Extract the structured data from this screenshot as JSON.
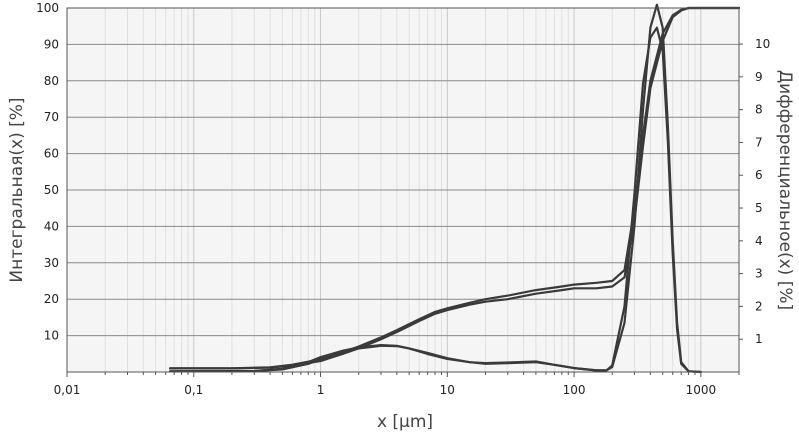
{
  "chart_data": {
    "type": "line",
    "xlabel": "x [µm]",
    "ylabel_left": "Интегральная(x) [%]",
    "ylabel_right": "Дифференциальное(x) [%]",
    "x_scale": "log",
    "xlim": [
      0.01,
      2000
    ],
    "ylim_left": [
      0,
      100
    ],
    "ylim_right": [
      0,
      11.1
    ],
    "grid": true,
    "x_ticks": [
      {
        "value": 0.01,
        "label": "0,01"
      },
      {
        "value": 0.1,
        "label": "0,1"
      },
      {
        "value": 1,
        "label": "1"
      },
      {
        "value": 10,
        "label": "10"
      },
      {
        "value": 100,
        "label": "100"
      },
      {
        "value": 1000,
        "label": "1000"
      }
    ],
    "y_left_ticks": [
      {
        "value": 10,
        "label": "10"
      },
      {
        "value": 20,
        "label": "20"
      },
      {
        "value": 30,
        "label": "30"
      },
      {
        "value": 40,
        "label": "40"
      },
      {
        "value": 50,
        "label": "50"
      },
      {
        "value": 60,
        "label": "60"
      },
      {
        "value": 70,
        "label": "70"
      },
      {
        "value": 80,
        "label": "80"
      },
      {
        "value": 90,
        "label": "90"
      },
      {
        "value": 100,
        "label": "100"
      }
    ],
    "y_right_ticks": [
      {
        "value": 1,
        "label": "1"
      },
      {
        "value": 2,
        "label": "2"
      },
      {
        "value": 3,
        "label": "3"
      },
      {
        "value": 4,
        "label": "4"
      },
      {
        "value": 5,
        "label": "5"
      },
      {
        "value": 6,
        "label": "6"
      },
      {
        "value": 7,
        "label": "7"
      },
      {
        "value": 8,
        "label": "8"
      },
      {
        "value": 9,
        "label": "9"
      },
      {
        "value": 10,
        "label": "10"
      }
    ],
    "series": [
      {
        "axis": "left",
        "color": "#3a3a3a",
        "x": [
          0.065,
          0.2,
          0.4,
          0.6,
          1,
          1.5,
          2,
          3,
          4,
          6,
          8,
          10,
          15,
          20,
          30,
          50,
          80,
          100,
          150,
          200,
          250,
          300,
          350,
          400,
          500,
          600,
          700,
          800,
          1000,
          2000
        ],
        "y": [
          1,
          1,
          1.3,
          2,
          3.5,
          5.5,
          7,
          9.5,
          11.5,
          14.5,
          16.5,
          17.5,
          19,
          20,
          21,
          22.5,
          23.5,
          24,
          24.5,
          25,
          28,
          45,
          65,
          80,
          93,
          98,
          99.5,
          100,
          100,
          100
        ]
      },
      {
        "axis": "left",
        "color": "#3a3a3a",
        "x": [
          0.065,
          0.2,
          0.4,
          0.6,
          1,
          1.5,
          2,
          3,
          4,
          6,
          8,
          10,
          15,
          20,
          30,
          50,
          80,
          100,
          150,
          200,
          250,
          300,
          350,
          400,
          500,
          600,
          700,
          800,
          1000,
          2000
        ],
        "y": [
          1,
          1,
          1.2,
          1.8,
          3,
          5,
          6.5,
          9,
          11,
          14,
          16,
          17,
          18.5,
          19.3,
          20,
          21.5,
          22.5,
          23,
          23,
          23.5,
          26,
          42,
          62,
          78,
          91,
          97.5,
          99.3,
          100,
          100,
          100
        ]
      },
      {
        "axis": "right",
        "color": "#3a3a3a",
        "x": [
          0.065,
          0.3,
          0.5,
          0.8,
          1,
          1.5,
          2,
          3,
          4,
          5,
          7,
          10,
          15,
          20,
          30,
          50,
          70,
          100,
          150,
          180,
          200,
          250,
          300,
          350,
          400,
          450,
          500,
          550,
          600,
          650,
          700,
          800,
          1000
        ],
        "y": [
          0.02,
          0.03,
          0.1,
          0.3,
          0.45,
          0.65,
          0.75,
          0.82,
          0.8,
          0.72,
          0.55,
          0.4,
          0.3,
          0.25,
          0.27,
          0.3,
          0.22,
          0.12,
          0.05,
          0.05,
          0.15,
          1.5,
          4.5,
          8,
          10.5,
          11.2,
          10.5,
          7.5,
          4,
          1.5,
          0.3,
          0.02,
          0
        ]
      },
      {
        "axis": "right",
        "color": "#3a3a3a",
        "x": [
          0.065,
          0.3,
          0.5,
          0.8,
          1,
          1.5,
          2,
          3,
          4,
          5,
          7,
          10,
          15,
          20,
          30,
          50,
          70,
          100,
          150,
          180,
          200,
          250,
          300,
          350,
          400,
          450,
          500,
          550,
          600,
          650,
          700,
          800,
          1000
        ],
        "y": [
          0.02,
          0.03,
          0.08,
          0.25,
          0.38,
          0.6,
          0.72,
          0.8,
          0.79,
          0.72,
          0.58,
          0.42,
          0.3,
          0.27,
          0.29,
          0.32,
          0.22,
          0.12,
          0.05,
          0.05,
          0.2,
          2,
          5.5,
          8.8,
          10.2,
          10.5,
          9.8,
          7,
          3.6,
          1.3,
          0.25,
          0.02,
          0
        ]
      }
    ]
  }
}
